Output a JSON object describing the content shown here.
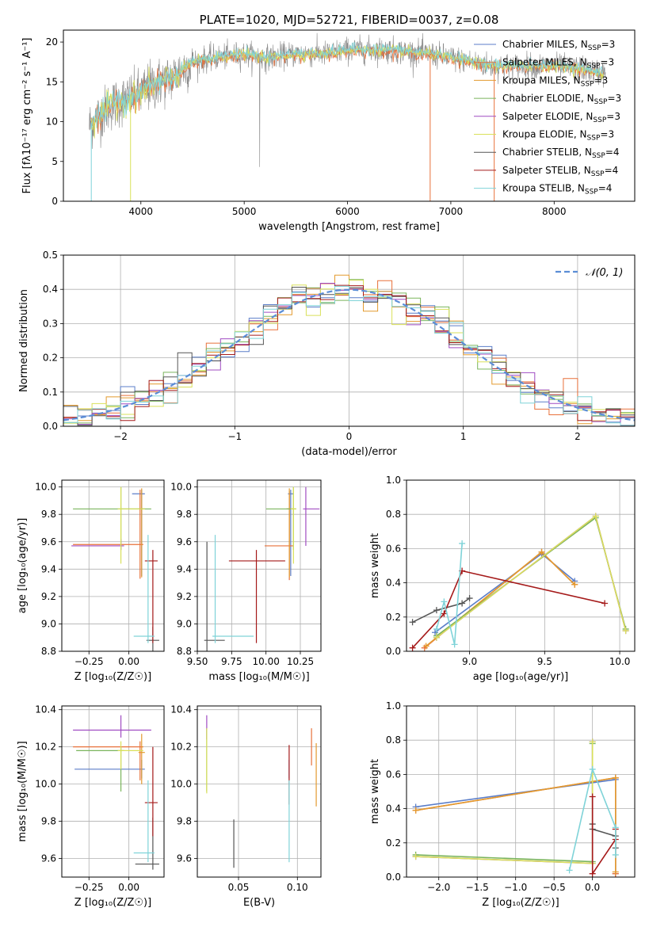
{
  "colors": {
    "Chabrier MILES": "#5b7ec9",
    "Salpeter MILES": "#e8703a",
    "Kroupa MILES": "#e39a2e",
    "Chabrier ELODIE": "#7ab55c",
    "Salpeter ELODIE": "#a04cc2",
    "Kroupa ELODIE": "#d9e05a",
    "Chabrier STELIB": "#555555",
    "Salpeter STELIB": "#a51a1a",
    "Kroupa STELIB": "#7fd3d8",
    "spectrum_grey": "#8a8a8a",
    "pdf_line": "#5b8dd6"
  },
  "chart_data": [
    {
      "id": "spectrum",
      "type": "line",
      "title": "PLATE=1020, MJD=52721, FIBERID=0037, z=0.08",
      "xlabel": "wavelength [Angstrom, rest frame]",
      "ylabel": "Flux [fλ10⁻¹⁷ erg cm⁻² s⁻¹ A⁻¹]",
      "xlim": [
        3250,
        8780
      ],
      "ylim": [
        0,
        21.5
      ],
      "xticks": [
        4000,
        5000,
        6000,
        7000,
        8000
      ],
      "yticks": [
        0,
        5,
        10,
        15,
        20
      ],
      "legend_position": "top-right",
      "legend": [
        {
          "label": "Chabrier MILES, N",
          "sub": "SSP",
          "eq": "=3"
        },
        {
          "label": "Salpeter MILES, N",
          "sub": "SSP",
          "eq": "=3"
        },
        {
          "label": "Kroupa MILES, N",
          "sub": "SSP",
          "eq": "=3"
        },
        {
          "label": "Chabrier ELODIE, N",
          "sub": "SSP",
          "eq": "=3"
        },
        {
          "label": "Salpeter ELODIE, N",
          "sub": "SSP",
          "eq": "=3"
        },
        {
          "label": "Kroupa ELODIE, N",
          "sub": "SSP",
          "eq": "=3"
        },
        {
          "label": "Chabrier STELIB, N",
          "sub": "SSP",
          "eq": "=4"
        },
        {
          "label": "Salpeter STELIB, N",
          "sub": "SSP",
          "eq": "=4"
        },
        {
          "label": "Kroupa STELIB, N",
          "sub": "SSP",
          "eq": "=4"
        }
      ],
      "continuum": [
        [
          3500,
          9.5
        ],
        [
          3700,
          12
        ],
        [
          3900,
          13
        ],
        [
          4000,
          13.5
        ],
        [
          4100,
          14.5
        ],
        [
          4300,
          15.5
        ],
        [
          4500,
          17.5
        ],
        [
          4700,
          18
        ],
        [
          5000,
          18.5
        ],
        [
          5200,
          18
        ],
        [
          5500,
          18.5
        ],
        [
          5800,
          18.5
        ],
        [
          6000,
          19
        ],
        [
          6400,
          19
        ],
        [
          6800,
          18.5
        ],
        [
          7000,
          18
        ],
        [
          7200,
          17.5
        ],
        [
          7400,
          17
        ],
        [
          7700,
          17
        ],
        [
          8000,
          17
        ],
        [
          8300,
          16.5
        ],
        [
          8500,
          16
        ]
      ]
    },
    {
      "id": "residuals",
      "type": "line",
      "xlabel": "(data-model)/error",
      "ylabel": "Normed distribution",
      "xlim": [
        -2.5,
        2.5
      ],
      "ylim": [
        0,
        0.5
      ],
      "xticks": [
        -2,
        -1,
        0,
        1,
        2
      ],
      "yticks": [
        0.0,
        0.1,
        0.2,
        0.3,
        0.4,
        0.5
      ],
      "legend": "𝒩(0, 1)",
      "legend_position": "top-right"
    },
    {
      "id": "age-vs-Z",
      "type": "scatter",
      "xlabel": "Z [log₁₀(Z/Z☉)]",
      "ylabel": "age  [log₁₀(age/yr)]",
      "xlim": [
        -0.42,
        0.22
      ],
      "ylim": [
        8.8,
        10.05
      ],
      "xticks": [
        -0.25,
        0.0
      ],
      "yticks": [
        8.8,
        9.0,
        9.2,
        9.4,
        9.6,
        9.8,
        10.0
      ],
      "points": [
        {
          "series": "Chabrier MILES",
          "x": 0.08,
          "y": 9.95,
          "xerr": [
            0.06,
            0.02
          ],
          "yerr": [
            0.6,
            0.03
          ]
        },
        {
          "series": "Salpeter MILES",
          "x": 0.07,
          "y": 9.58,
          "xerr": [
            0.42,
            0.02
          ],
          "yerr": [
            0.25,
            0.4
          ]
        },
        {
          "series": "Kroupa MILES",
          "x": 0.08,
          "y": 9.84,
          "xerr": [
            0.02,
            0.02
          ],
          "yerr": [
            0.5,
            0.15
          ]
        },
        {
          "series": "Chabrier ELODIE",
          "x": -0.05,
          "y": 9.84,
          "xerr": [
            0.3,
            0.19
          ],
          "yerr": [
            0.3,
            0.16
          ]
        },
        {
          "series": "Salpeter ELODIE",
          "x": -0.05,
          "y": 9.57,
          "xerr": [
            0.31,
            0.02
          ],
          "yerr": [
            0.03,
            0.05
          ]
        },
        {
          "series": "Kroupa ELODIE",
          "x": -0.05,
          "y": 9.84,
          "xerr": [
            0.02,
            0.15
          ],
          "yerr": [
            0.4,
            0.16
          ]
        },
        {
          "series": "Chabrier STELIB",
          "x": 0.15,
          "y": 8.88,
          "xerr": [
            0.04,
            0.04
          ],
          "yerr": [
            0.1,
            0.1
          ]
        },
        {
          "series": "Salpeter STELIB",
          "x": 0.15,
          "y": 9.46,
          "xerr": [
            0.05,
            0.03
          ],
          "yerr": [
            0.6,
            0.08
          ]
        },
        {
          "series": "Kroupa STELIB",
          "x": 0.12,
          "y": 8.91,
          "xerr": [
            0.09,
            0.04
          ],
          "yerr": [
            0.05,
            0.74
          ]
        }
      ]
    },
    {
      "id": "age-vs-mass",
      "type": "scatter",
      "xlabel": "mass [log₁₀(M/M☉)]",
      "ylabel": "",
      "xlim": [
        9.5,
        10.4
      ],
      "ylim": [
        8.8,
        10.05
      ],
      "xticks": [
        9.5,
        9.75,
        10.0,
        10.25
      ],
      "yticks": [
        8.8,
        9.0,
        9.2,
        9.4,
        9.6,
        9.8,
        10.0
      ],
      "points": [
        {
          "series": "Chabrier MILES",
          "x": 10.18,
          "y": 9.95,
          "xerr": [
            0.02,
            0.02
          ],
          "yerr": [
            0.6,
            0.03
          ]
        },
        {
          "series": "Salpeter MILES",
          "x": 10.17,
          "y": 9.57,
          "xerr": [
            0.18,
            0.03
          ],
          "yerr": [
            0.25,
            0.4
          ]
        },
        {
          "series": "Kroupa MILES",
          "x": 10.17,
          "y": 9.84,
          "xerr": [
            0.02,
            0.02
          ],
          "yerr": [
            0.5,
            0.15
          ]
        },
        {
          "series": "Chabrier ELODIE",
          "x": 10.2,
          "y": 9.84,
          "xerr": [
            0.2,
            0.02
          ],
          "yerr": [
            0.3,
            0.16
          ]
        },
        {
          "series": "Salpeter ELODIE",
          "x": 10.29,
          "y": 9.84,
          "xerr": [
            0.02,
            0.1
          ],
          "yerr": [
            0.27,
            0.16
          ]
        },
        {
          "series": "Kroupa ELODIE",
          "x": 10.2,
          "y": 9.84,
          "xerr": [
            0.02,
            0.02
          ],
          "yerr": [
            0.4,
            0.16
          ]
        },
        {
          "series": "Chabrier STELIB",
          "x": 9.57,
          "y": 8.88,
          "xerr": [
            0.02,
            0.13
          ],
          "yerr": [
            0.1,
            0.72
          ]
        },
        {
          "series": "Salpeter STELIB",
          "x": 9.93,
          "y": 9.46,
          "xerr": [
            0.2,
            0.21
          ],
          "yerr": [
            0.6,
            0.08
          ]
        },
        {
          "series": "Kroupa STELIB",
          "x": 9.63,
          "y": 8.91,
          "xerr": [
            0.02,
            0.28
          ],
          "yerr": [
            0.05,
            0.74
          ]
        }
      ]
    },
    {
      "id": "weight-vs-age",
      "type": "line",
      "xlabel": "age  [log₁₀(age/yr)]",
      "ylabel": "mass weight",
      "xlim": [
        8.58,
        10.1
      ],
      "ylim": [
        0,
        1.0
      ],
      "xticks": [
        9.0,
        9.5,
        10.0
      ],
      "yticks": [
        0.0,
        0.2,
        0.4,
        0.6,
        0.8,
        1.0
      ],
      "series": [
        {
          "series": "Chabrier MILES",
          "x": [
            8.77,
            9.48,
            9.7
          ],
          "y": [
            0.11,
            0.57,
            0.41
          ]
        },
        {
          "series": "Salpeter MILES",
          "x": [
            8.7,
            9.48,
            9.7
          ],
          "y": [
            0.02,
            0.58,
            0.39
          ]
        },
        {
          "series": "Kroupa MILES",
          "x": [
            8.71,
            9.48,
            9.7
          ],
          "y": [
            0.03,
            0.58,
            0.39
          ]
        },
        {
          "series": "Chabrier ELODIE",
          "x": [
            8.78,
            9.84,
            10.04
          ],
          "y": [
            0.09,
            0.78,
            0.13
          ]
        },
        {
          "series": "Salpeter ELODIE",
          "x": [
            8.78,
            9.84,
            10.04
          ],
          "y": [
            0.08,
            0.79,
            0.12
          ]
        },
        {
          "series": "Kroupa ELODIE",
          "x": [
            8.78,
            9.84,
            10.04
          ],
          "y": [
            0.08,
            0.79,
            0.12
          ]
        },
        {
          "series": "Chabrier STELIB",
          "x": [
            8.62,
            8.78,
            8.95,
            9.0
          ],
          "y": [
            0.17,
            0.24,
            0.28,
            0.31
          ]
        },
        {
          "series": "Salpeter STELIB",
          "x": [
            8.62,
            8.83,
            8.95,
            9.9
          ],
          "y": [
            0.02,
            0.22,
            0.47,
            0.28
          ]
        },
        {
          "series": "Kroupa STELIB",
          "x": [
            8.78,
            8.83,
            8.9,
            8.95
          ],
          "y": [
            0.13,
            0.29,
            0.04,
            0.63
          ]
        }
      ]
    },
    {
      "id": "mass-vs-Z",
      "type": "scatter",
      "xlabel": "Z [log₁₀(Z/Z☉)]",
      "ylabel": "mass [log₁₀(M/M☉)]",
      "xlim": [
        -0.42,
        0.22
      ],
      "ylim": [
        9.5,
        10.42
      ],
      "xticks": [
        -0.25,
        0.0
      ],
      "yticks": [
        9.6,
        9.8,
        10.0,
        10.2,
        10.4
      ],
      "points": [
        {
          "series": "Chabrier MILES",
          "x": 0.08,
          "y": 10.08,
          "xerr": [
            0.42,
            0.02
          ],
          "yerr": [
            0.05,
            0.05
          ]
        },
        {
          "series": "Salpeter MILES",
          "x": 0.07,
          "y": 10.2,
          "xerr": [
            0.42,
            0.02
          ],
          "yerr": [
            0.18,
            0.03
          ]
        },
        {
          "series": "Kroupa MILES",
          "x": 0.08,
          "y": 10.17,
          "xerr": [
            0.02,
            0.02
          ],
          "yerr": [
            0.17,
            0.1
          ]
        },
        {
          "series": "Chabrier ELODIE",
          "x": -0.05,
          "y": 10.18,
          "xerr": [
            0.28,
            0.02
          ],
          "yerr": [
            0.22,
            0.02
          ]
        },
        {
          "series": "Salpeter ELODIE",
          "x": -0.05,
          "y": 10.29,
          "xerr": [
            0.3,
            0.19
          ],
          "yerr": [
            0.04,
            0.08
          ]
        },
        {
          "series": "Kroupa ELODIE",
          "x": -0.05,
          "y": 10.18,
          "xerr": [
            0.02,
            0.14
          ],
          "yerr": [
            0.1,
            0.05
          ]
        },
        {
          "series": "Chabrier STELIB",
          "x": 0.15,
          "y": 9.57,
          "xerr": [
            0.11,
            0.04
          ],
          "yerr": [
            0.03,
            0.25
          ]
        },
        {
          "series": "Salpeter STELIB",
          "x": 0.15,
          "y": 9.9,
          "xerr": [
            0.05,
            0.03
          ],
          "yerr": [
            0.18,
            0.3
          ]
        },
        {
          "series": "Kroupa STELIB",
          "x": 0.12,
          "y": 9.63,
          "xerr": [
            0.09,
            0.04
          ],
          "yerr": [
            0.05,
            0.39
          ]
        }
      ]
    },
    {
      "id": "mass-vs-ebv",
      "type": "scatter",
      "xlabel": "E(B-V)",
      "ylabel": "",
      "xlim": [
        0.015,
        0.12
      ],
      "ylim": [
        9.5,
        10.42
      ],
      "xticks": [
        0.05,
        0.1
      ],
      "yticks": [
        9.6,
        9.8,
        10.0,
        10.2,
        10.4
      ],
      "points": [
        {
          "series": "Chabrier MILES",
          "x": 0.093,
          "y": 10.08,
          "yerr": [
            0.05,
            0.05
          ]
        },
        {
          "series": "Salpeter MILES",
          "x": 0.112,
          "y": 10.2,
          "yerr": [
            0.1,
            0.1
          ]
        },
        {
          "series": "Kroupa MILES",
          "x": 0.116,
          "y": 10.05,
          "yerr": [
            0.17,
            0.17
          ]
        },
        {
          "series": "Chabrier ELODIE",
          "x": 0.023,
          "y": 10.18,
          "yerr": [
            0.22,
            0.12
          ]
        },
        {
          "series": "Salpeter ELODIE",
          "x": 0.023,
          "y": 10.29,
          "yerr": [
            0.05,
            0.08
          ]
        },
        {
          "series": "Kroupa ELODIE",
          "x": 0.023,
          "y": 10.13,
          "yerr": [
            0.18,
            0.17
          ]
        },
        {
          "series": "Chabrier STELIB",
          "x": 0.046,
          "y": 9.68,
          "yerr": [
            0.13,
            0.13
          ]
        },
        {
          "series": "Salpeter STELIB",
          "x": 0.093,
          "y": 10.05,
          "yerr": [
            0.16,
            0.16
          ]
        },
        {
          "series": "Kroupa STELIB",
          "x": 0.093,
          "y": 9.8,
          "yerr": [
            0.22,
            0.22
          ]
        }
      ]
    },
    {
      "id": "weight-vs-Z",
      "type": "line",
      "xlabel": "Z [log₁₀(Z/Z☉)]",
      "ylabel": "mass weight",
      "xlim": [
        -2.42,
        0.55
      ],
      "ylim": [
        0,
        1.0
      ],
      "xticks": [
        -2.0,
        -1.5,
        -1.0,
        -0.5,
        0.0
      ],
      "yticks": [
        0.0,
        0.2,
        0.4,
        0.6,
        0.8,
        1.0
      ],
      "series": [
        {
          "series": "Chabrier MILES",
          "x": [
            -2.3,
            0.3,
            0.3
          ],
          "y": [
            0.41,
            0.57,
            0.02
          ]
        },
        {
          "series": "Salpeter MILES",
          "x": [
            -2.3,
            0.3,
            0.3
          ],
          "y": [
            0.39,
            0.58,
            0.02
          ]
        },
        {
          "series": "Kroupa MILES",
          "x": [
            -2.3,
            0.3,
            0.3
          ],
          "y": [
            0.39,
            0.58,
            0.03
          ]
        },
        {
          "series": "Chabrier ELODIE",
          "x": [
            -2.3,
            0.0,
            0.0
          ],
          "y": [
            0.13,
            0.09,
            0.78
          ]
        },
        {
          "series": "Salpeter ELODIE",
          "x": [
            -2.3,
            0.0,
            0.0
          ],
          "y": [
            0.12,
            0.08,
            0.79
          ]
        },
        {
          "series": "Kroupa ELODIE",
          "x": [
            -2.3,
            0.0,
            0.0
          ],
          "y": [
            0.12,
            0.08,
            0.79
          ]
        },
        {
          "series": "Chabrier STELIB",
          "x": [
            0.0,
            0.0,
            0.3,
            0.3
          ],
          "y": [
            0.31,
            0.28,
            0.24,
            0.17
          ]
        },
        {
          "series": "Salpeter STELIB",
          "x": [
            0.0,
            0.0,
            0.3,
            0.3
          ],
          "y": [
            0.47,
            0.02,
            0.22,
            0.28
          ]
        },
        {
          "series": "Kroupa STELIB",
          "x": [
            -0.3,
            0.0,
            0.3,
            0.3
          ],
          "y": [
            0.04,
            0.63,
            0.29,
            0.13
          ]
        }
      ]
    }
  ]
}
